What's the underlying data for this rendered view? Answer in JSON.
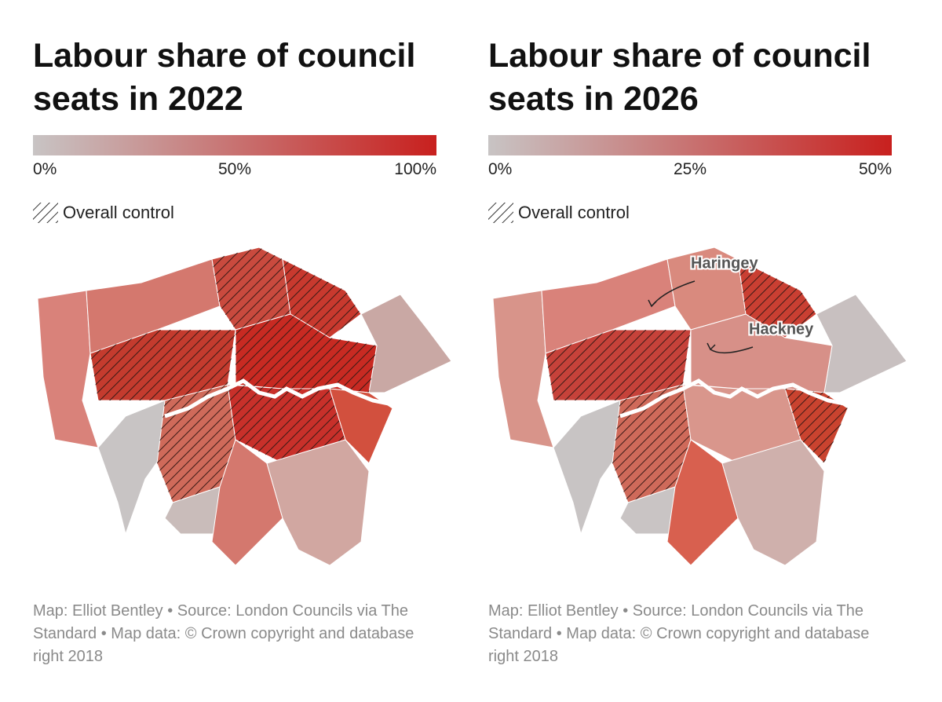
{
  "panels": [
    {
      "title": "Labour share of council seats in 2022",
      "scale": {
        "colors": [
          "#c8c4c4",
          "#c8201e"
        ],
        "ticks": [
          {
            "value": 0,
            "label": "0%"
          },
          {
            "value": 50,
            "label": "50%"
          },
          {
            "value": 100,
            "label": "100%"
          }
        ]
      },
      "hatch_legend": "Overall control",
      "credit": "Map: Elliot Bentley • Source: London Councils via The Standard • Map data: © Crown copyright and database right 2018"
    },
    {
      "title": "Labour share of council seats in 2026",
      "scale": {
        "colors": [
          "#c8c4c4",
          "#c8201e"
        ],
        "ticks": [
          {
            "value": 0,
            "label": "0%"
          },
          {
            "value": 25,
            "label": "25%"
          },
          {
            "value": 50,
            "label": "50%"
          }
        ]
      },
      "hatch_legend": "Overall control",
      "annotations": [
        "Haringey",
        "Hackney"
      ],
      "credit": "Map: Elliot Bentley • Source: London Councils via The Standard • Map data: © Crown copyright and database right 2018"
    }
  ]
}
